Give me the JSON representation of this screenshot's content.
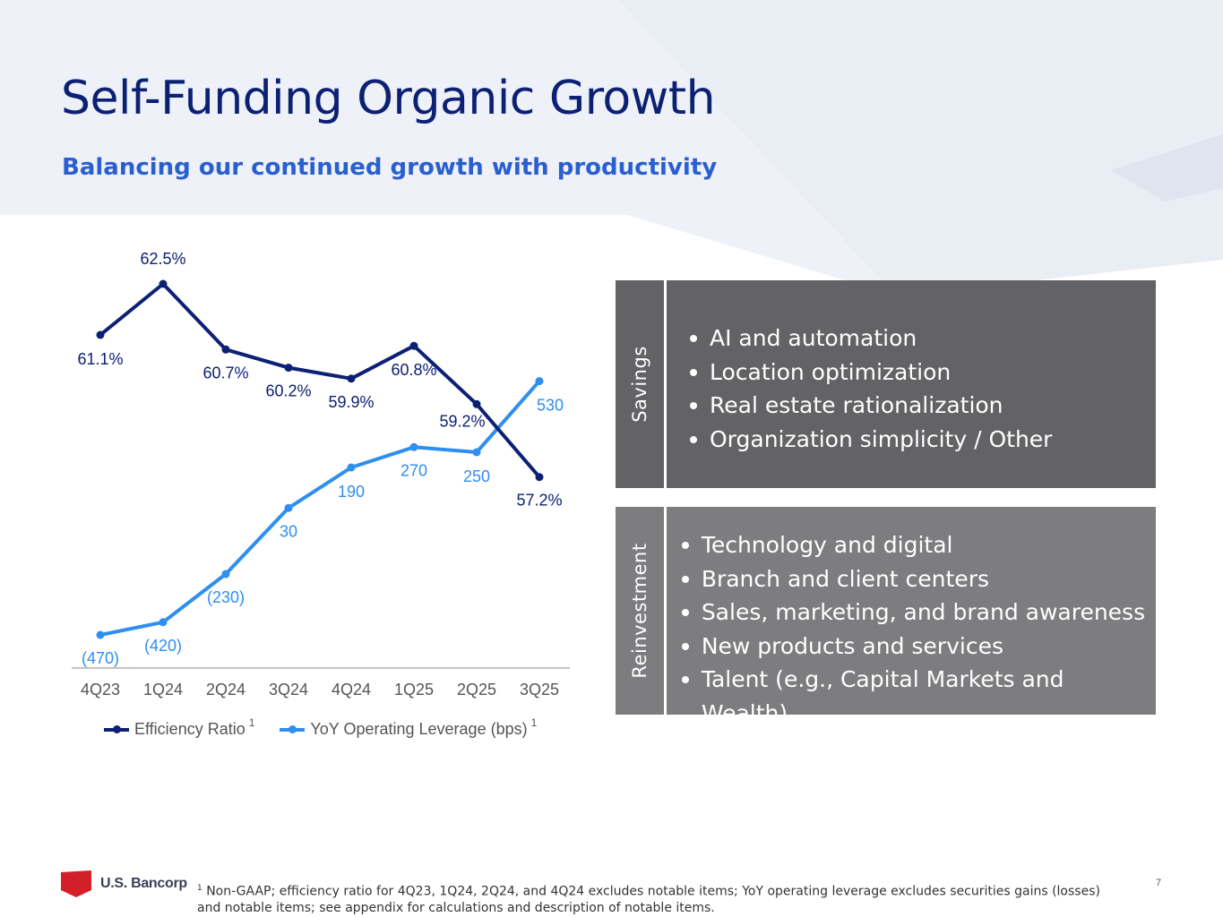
{
  "title": "Self-Funding Organic Growth",
  "subtitle": "Balancing our continued growth with productivity",
  "chart_data": {
    "type": "line",
    "categories": [
      "4Q23",
      "1Q24",
      "2Q24",
      "3Q24",
      "4Q24",
      "1Q25",
      "2Q25",
      "3Q25"
    ],
    "series": [
      {
        "name": "Efficiency Ratio",
        "footnote": "1",
        "color": "#0c2074",
        "values": [
          61.1,
          62.5,
          60.7,
          60.2,
          59.9,
          60.8,
          59.2,
          57.2
        ],
        "labels": [
          "61.1%",
          "62.5%",
          "60.7%",
          "60.2%",
          "59.9%",
          "60.8%",
          "59.2%",
          "57.2%"
        ]
      },
      {
        "name": "YoY Operating Leverage (bps)",
        "footnote": "1",
        "color": "#2e8ff0",
        "values": [
          -470,
          -420,
          -230,
          30,
          190,
          270,
          250,
          530
        ],
        "labels": [
          "(470)",
          "(420)",
          "(230)",
          "30",
          "190",
          "270",
          "250",
          "530"
        ]
      }
    ],
    "legend_position": "bottom"
  },
  "savings": {
    "label": "Savings",
    "items": [
      "AI and automation",
      "Location optimization",
      "Real estate rationalization",
      "Organization simplicity / Other"
    ]
  },
  "reinvestment": {
    "label": "Reinvestment",
    "items": [
      "Technology and digital",
      "Branch and client centers",
      "Sales, marketing, and brand awareness",
      "New products and services",
      "Talent (e.g., Capital Markets and Wealth)"
    ]
  },
  "logo_text": "U.S. Bancorp",
  "footnote": {
    "marker": "1",
    "text": "Non-GAAP; efficiency ratio for 4Q23, 1Q24, 2Q24, and 4Q24 excludes notable items; YoY operating leverage excludes securities gains (losses) and notable items; see appendix for calculations and description of notable items."
  },
  "page_number": "7"
}
